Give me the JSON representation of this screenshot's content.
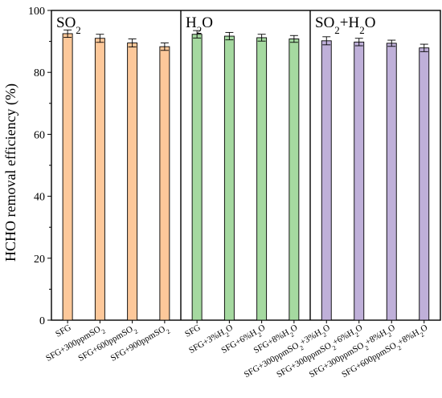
{
  "chart_data": {
    "type": "bar",
    "ylabel": "HCHO removal efficiency (%)",
    "ylim": [
      0,
      100
    ],
    "yticks": [
      0,
      20,
      40,
      60,
      80,
      100
    ],
    "grid": false,
    "error_bars": true,
    "panels": [
      {
        "title_html": "SO<tspan baseline-shift=\"sub\" font-size=\"13\">2</tspan>",
        "color": "#FDC89A",
        "categories": [
          "SFG",
          "SFG+300ppmSO<sub>2</sub>",
          "SFG+600ppmSO<sub>2</sub>",
          "SFG+900ppmSO<sub>2</sub>"
        ],
        "values": [
          92.5,
          91.0,
          89.5,
          88.3
        ],
        "errors": [
          1.2,
          1.3,
          1.3,
          1.2
        ]
      },
      {
        "title_html": "H<tspan baseline-shift=\"sub\" font-size=\"13\">2</tspan><tspan baseline-shift=\"0\">O</tspan>",
        "color": "#A5D9A0",
        "categories": [
          "SFG",
          "SFG+3%H<sub>2</sub>O",
          "SFG+6%H<sub>2</sub>O",
          "SFG+8%H<sub>2</sub>O"
        ],
        "values": [
          92.3,
          91.7,
          91.2,
          90.8
        ],
        "errors": [
          1.2,
          1.2,
          1.1,
          1.1
        ]
      },
      {
        "title_html": "SO<tspan baseline-shift=\"sub\" font-size=\"13\">2</tspan><tspan baseline-shift=\"0\">+H</tspan><tspan baseline-shift=\"sub\" font-size=\"13\">2</tspan><tspan baseline-shift=\"0\">O</tspan>",
        "color": "#BFB0D9",
        "categories": [
          "SFG+300ppmSO<sub>2</sub>+3%H<sub>2</sub>O",
          "SFG+300ppmSO<sub>2</sub>+6%H<sub>2</sub>O",
          "SFG+300ppmSO<sub>2</sub>+8%H<sub>2</sub>O",
          "SFG+600ppmSO<sub>2</sub>+8%H<sub>2</sub>O"
        ],
        "values": [
          90.2,
          89.8,
          89.4,
          87.9
        ],
        "errors": [
          1.3,
          1.2,
          1.0,
          1.2
        ]
      }
    ]
  }
}
